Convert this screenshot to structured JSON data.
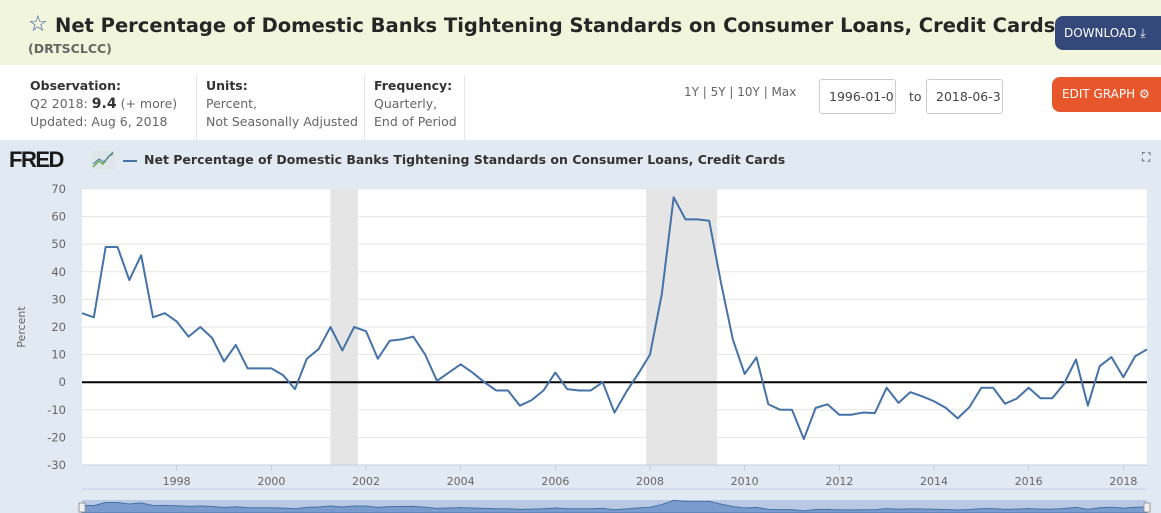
{
  "header": {
    "title": "Net Percentage of Domestic Banks Tightening Standards on Consumer Loans, Credit Cards",
    "series_id": "(DRTSCLCC)",
    "download_label": "DOWNLOAD"
  },
  "info": {
    "observation_label": "Observation:",
    "observation_period": "Q2 2018:",
    "observation_value": "9.4",
    "observation_more": "(+ more)",
    "updated": "Updated: Aug 6, 2018",
    "units_label": "Units:",
    "units_line1": "Percent,",
    "units_line2": "Not Seasonally Adjusted",
    "frequency_label": "Frequency:",
    "frequency_line1": "Quarterly,",
    "frequency_line2": "End of Period"
  },
  "controls": {
    "range_links": "1Y | 5Y | 10Y | Max",
    "start_date": "1996-01-0",
    "to_label": "to",
    "end_date": "2018-06-3",
    "edit_label": "EDIT GRAPH"
  },
  "colors": {
    "series": "#4572a7",
    "recession": "#e5e5e5",
    "download": "#34497a",
    "edit": "#e8572c"
  },
  "chart_data": {
    "type": "line",
    "logo": "FRED",
    "legend": "Net Percentage of Domestic Banks Tightening Standards on Consumer Loans, Credit Cards",
    "ylabel": "Percent",
    "ylim": [
      -30,
      70
    ],
    "xlim": [
      1996.0,
      2018.5
    ],
    "yticks": [
      "70",
      "60",
      "50",
      "40",
      "30",
      "20",
      "10",
      "0",
      "-10",
      "-20",
      "-30"
    ],
    "xticks": [
      "1998",
      "2000",
      "2002",
      "2004",
      "2006",
      "2008",
      "2010",
      "2012",
      "2014",
      "2016",
      "2018"
    ],
    "recessions": [
      [
        2001.25,
        2001.83
      ],
      [
        2007.92,
        2009.42
      ]
    ],
    "x_start": 1996.0,
    "x_step": 0.25,
    "values": [
      25,
      23.5,
      49,
      49,
      37,
      46,
      23.5,
      25,
      22,
      16.5,
      20,
      16,
      7.5,
      13.5,
      5,
      5,
      5,
      2.5,
      -2.5,
      8.5,
      12,
      20,
      11.5,
      20,
      18.5,
      8.5,
      15,
      15.5,
      16.5,
      10,
      0.5,
      3.5,
      6.5,
      3.5,
      0,
      -3,
      -3,
      -8.5,
      -6.5,
      -3,
      3.5,
      -2.5,
      -3,
      -3,
      0,
      -11,
      -3.5,
      3,
      10,
      32,
      67,
      59,
      59,
      58.5,
      36,
      15.5,
      3,
      9,
      -8,
      -10,
      -10,
      -20.6,
      -9.3,
      -8,
      -11.8,
      -11.8,
      -11,
      -11.2,
      -2,
      -7.5,
      -3.6,
      -5.1,
      -6.9,
      -9.3,
      -13.1,
      -9,
      -2,
      -2,
      -7.8,
      -5.9,
      -2,
      -5.8,
      -5.8,
      -0.5,
      8.2,
      -8.5,
      5.8,
      9.1,
      1.8,
      9.4,
      11.9
    ]
  }
}
